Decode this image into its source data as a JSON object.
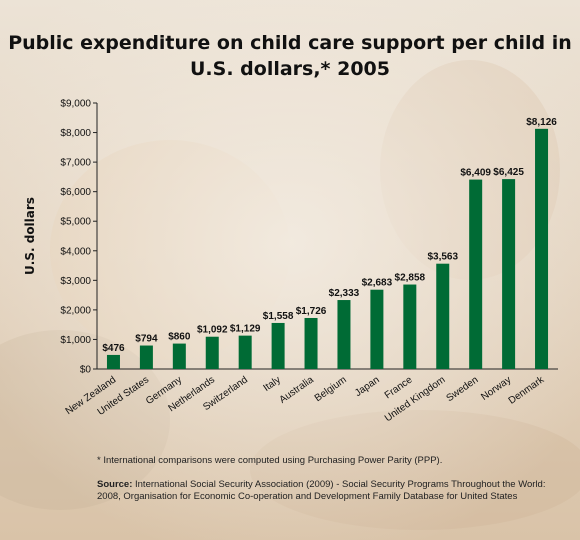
{
  "title_line1": "Public expenditure on child care support per child in",
  "title_line2": "U.S. dollars,* 2005",
  "footnote": "*  International comparisons were computed using Purchasing Power Parity (PPP).",
  "source_label": "Source:",
  "source_text": " International Social Security Association (2009) - Social Security Programs Throughout the World: 2008, Organisation for Economic Co-operation and Development Family Database for United States",
  "colors": {
    "bar": "#006b35",
    "axis": "#222222",
    "background_top": "#e9dccb",
    "background_bottom": "#d7c2a6"
  },
  "chart_data": {
    "type": "bar",
    "title": "Public expenditure on child care support per child in U.S. dollars,* 2005",
    "ylabel": "U.S. dollars",
    "xlabel": "",
    "ylim": [
      0,
      9000
    ],
    "yticks": [
      0,
      1000,
      2000,
      3000,
      4000,
      5000,
      6000,
      7000,
      8000,
      9000
    ],
    "ytick_labels": [
      "$0",
      "$1,000",
      "$2,000",
      "$3,000",
      "$4,000",
      "$5,000",
      "$6,000",
      "$7,000",
      "$8,000",
      "$9,000"
    ],
    "categories": [
      "New Zealand",
      "United States",
      "Germany",
      "Netherlands",
      "Switzerland",
      "Italy",
      "Australia",
      "Belgium",
      "Japan",
      "France",
      "United Kingdom",
      "Sweden",
      "Norway",
      "Denmark"
    ],
    "values": [
      476,
      794,
      860,
      1092,
      1129,
      1558,
      1726,
      2333,
      2683,
      2858,
      3563,
      6409,
      6425,
      8126
    ],
    "value_labels": [
      "$476",
      "$794",
      "$860",
      "$1,092",
      "$1,129",
      "$1,558",
      "$1,726",
      "$2,333",
      "$2,683",
      "$2,858",
      "$3,563",
      "$6,409",
      "$6,425",
      "$8,126"
    ],
    "grid": false,
    "legend": "none"
  }
}
